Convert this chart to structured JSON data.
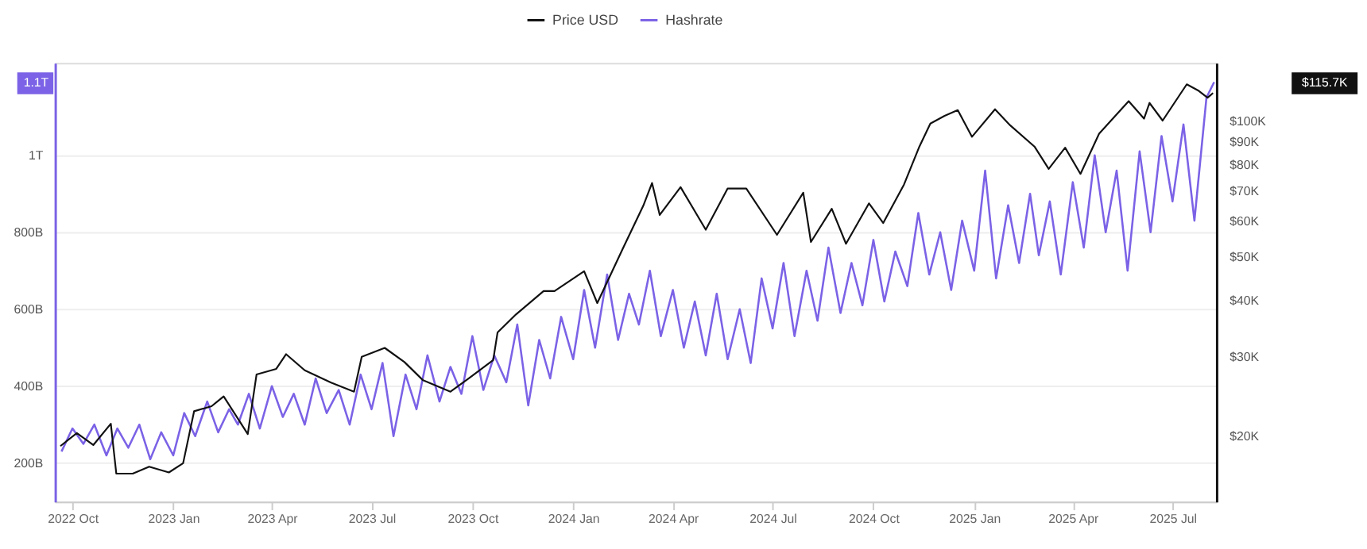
{
  "chart_data": {
    "type": "line",
    "xlim": [
      "2022-09-15",
      "2025-08-10"
    ],
    "xticks": [
      {
        "value": "2022-10-01",
        "label": "2022 Oct"
      },
      {
        "value": "2023-01-01",
        "label": "2023 Jan"
      },
      {
        "value": "2023-04-01",
        "label": "2023 Apr"
      },
      {
        "value": "2023-07-01",
        "label": "2023 Jul"
      },
      {
        "value": "2023-10-01",
        "label": "2023 Oct"
      },
      {
        "value": "2024-01-01",
        "label": "2024 Jan"
      },
      {
        "value": "2024-04-01",
        "label": "2024 Apr"
      },
      {
        "value": "2024-07-01",
        "label": "2024 Jul"
      },
      {
        "value": "2024-10-01",
        "label": "2024 Oct"
      },
      {
        "value": "2025-01-01",
        "label": "2025 Jan"
      },
      {
        "value": "2025-04-01",
        "label": "2025 Apr"
      },
      {
        "value": "2025-07-01",
        "label": "2025 Jul"
      }
    ],
    "ylim": [
      100000000000.0,
      1240000000000.0
    ],
    "yticks": [
      {
        "value": 200000000000.0,
        "label": "200B"
      },
      {
        "value": 400000000000.0,
        "label": "400B"
      },
      {
        "value": 600000000000.0,
        "label": "600B"
      },
      {
        "value": 800000000000.0,
        "label": "800B"
      },
      {
        "value": 1000000000000.0,
        "label": "1T"
      }
    ],
    "y2lim": [
      14300,
      135000
    ],
    "y2ticks": [
      {
        "value": 20000,
        "label": "$20K"
      },
      {
        "value": 30000,
        "label": "$30K"
      },
      {
        "value": 40000,
        "label": "$40K"
      },
      {
        "value": 50000,
        "label": "$50K"
      },
      {
        "value": 60000,
        "label": "$60K"
      },
      {
        "value": 70000,
        "label": "$70K"
      },
      {
        "value": 80000,
        "label": "$80K"
      },
      {
        "value": 90000,
        "label": "$90K"
      },
      {
        "value": 100000,
        "label": "$100K"
      }
    ],
    "log": "y2",
    "grid": "y",
    "legend": "top",
    "line_style": "solid",
    "marker": "none",
    "annotations": [
      "1.1T",
      "$115.7K"
    ],
    "series": [
      {
        "name": "Price USD",
        "color": "#111111",
        "axis": "y2",
        "x": [
          "2022-09-20",
          "2022-10-05",
          "2022-10-20",
          "2022-11-05",
          "2022-11-10",
          "2022-11-25",
          "2022-12-10",
          "2022-12-28",
          "2023-01-10",
          "2023-01-20",
          "2023-02-05",
          "2023-02-16",
          "2023-03-10",
          "2023-03-18",
          "2023-04-05",
          "2023-04-14",
          "2023-05-01",
          "2023-05-25",
          "2023-06-15",
          "2023-06-22",
          "2023-07-13",
          "2023-07-31",
          "2023-08-17",
          "2023-09-11",
          "2023-09-28",
          "2023-10-20",
          "2023-10-24",
          "2023-11-10",
          "2023-12-05",
          "2023-12-15",
          "2024-01-11",
          "2024-01-23",
          "2024-02-15",
          "2024-03-05",
          "2024-03-13",
          "2024-03-20",
          "2024-04-08",
          "2024-05-01",
          "2024-05-21",
          "2024-06-07",
          "2024-07-05",
          "2024-07-29",
          "2024-08-05",
          "2024-08-24",
          "2024-09-06",
          "2024-09-27",
          "2024-10-10",
          "2024-10-29",
          "2024-11-12",
          "2024-11-22",
          "2024-12-05",
          "2024-12-17",
          "2024-12-30",
          "2025-01-20",
          "2025-02-03",
          "2025-02-25",
          "2025-03-10",
          "2025-03-25",
          "2025-04-08",
          "2025-04-25",
          "2025-05-22",
          "2025-06-05",
          "2025-06-10",
          "2025-06-22",
          "2025-07-14",
          "2025-07-25",
          "2025-08-02",
          "2025-08-07"
        ],
        "values": [
          19000,
          20300,
          19100,
          21300,
          16500,
          16500,
          17100,
          16600,
          17400,
          22700,
          23300,
          24500,
          20200,
          27400,
          28200,
          30400,
          28000,
          26300,
          25100,
          30000,
          31400,
          29200,
          26600,
          25100,
          26900,
          29500,
          34000,
          37300,
          42000,
          42000,
          46500,
          39500,
          52000,
          65000,
          73000,
          62000,
          71500,
          57500,
          71000,
          71000,
          56000,
          69500,
          54000,
          64000,
          53500,
          65800,
          59500,
          72500,
          88000,
          99000,
          103000,
          106000,
          92500,
          106500,
          98000,
          88000,
          78500,
          87500,
          76500,
          94000,
          111000,
          101500,
          110000,
          100500,
          121000,
          117000,
          113000,
          115700
        ]
      },
      {
        "name": "Hashrate",
        "color": "#7b62e6",
        "axis": "y",
        "x": [
          "2022-09-21",
          "2022-10-01",
          "2022-10-11",
          "2022-10-21",
          "2022-11-01",
          "2022-11-11",
          "2022-11-21",
          "2022-12-01",
          "2022-12-11",
          "2022-12-21",
          "2023-01-01",
          "2023-01-11",
          "2023-01-21",
          "2023-02-01",
          "2023-02-11",
          "2023-02-21",
          "2023-03-01",
          "2023-03-11",
          "2023-03-21",
          "2023-04-01",
          "2023-04-11",
          "2023-04-21",
          "2023-05-01",
          "2023-05-11",
          "2023-05-21",
          "2023-06-01",
          "2023-06-11",
          "2023-06-21",
          "2023-07-01",
          "2023-07-11",
          "2023-07-21",
          "2023-08-01",
          "2023-08-11",
          "2023-08-21",
          "2023-09-01",
          "2023-09-11",
          "2023-09-21",
          "2023-10-01",
          "2023-10-11",
          "2023-10-21",
          "2023-11-01",
          "2023-11-11",
          "2023-11-21",
          "2023-12-01",
          "2023-12-11",
          "2023-12-21",
          "2024-01-01",
          "2024-01-11",
          "2024-01-21",
          "2024-02-01",
          "2024-02-11",
          "2024-02-21",
          "2024-03-01",
          "2024-03-11",
          "2024-03-21",
          "2024-04-01",
          "2024-04-11",
          "2024-04-21",
          "2024-05-01",
          "2024-05-11",
          "2024-05-21",
          "2024-06-01",
          "2024-06-11",
          "2024-06-21",
          "2024-07-01",
          "2024-07-11",
          "2024-07-21",
          "2024-08-01",
          "2024-08-11",
          "2024-08-21",
          "2024-09-01",
          "2024-09-11",
          "2024-09-21",
          "2024-10-01",
          "2024-10-11",
          "2024-10-21",
          "2024-11-01",
          "2024-11-11",
          "2024-11-21",
          "2024-12-01",
          "2024-12-11",
          "2024-12-21",
          "2025-01-01",
          "2025-01-11",
          "2025-01-21",
          "2025-02-01",
          "2025-02-11",
          "2025-02-21",
          "2025-03-01",
          "2025-03-11",
          "2025-03-21",
          "2025-04-01",
          "2025-04-11",
          "2025-04-21",
          "2025-05-01",
          "2025-05-11",
          "2025-05-21",
          "2025-06-01",
          "2025-06-11",
          "2025-06-21",
          "2025-07-01",
          "2025-07-11",
          "2025-07-21",
          "2025-08-01",
          "2025-08-08"
        ],
        "values": [
          230000000000.0,
          290000000000.0,
          250000000000.0,
          300000000000.0,
          220000000000.0,
          290000000000.0,
          240000000000.0,
          300000000000.0,
          210000000000.0,
          280000000000.0,
          220000000000.0,
          330000000000.0,
          270000000000.0,
          360000000000.0,
          280000000000.0,
          340000000000.0,
          300000000000.0,
          380000000000.0,
          290000000000.0,
          400000000000.0,
          320000000000.0,
          380000000000.0,
          300000000000.0,
          420000000000.0,
          330000000000.0,
          390000000000.0,
          300000000000.0,
          430000000000.0,
          340000000000.0,
          460000000000.0,
          270000000000.0,
          430000000000.0,
          340000000000.0,
          480000000000.0,
          360000000000.0,
          450000000000.0,
          380000000000.0,
          530000000000.0,
          390000000000.0,
          480000000000.0,
          410000000000.0,
          560000000000.0,
          350000000000.0,
          520000000000.0,
          420000000000.0,
          580000000000.0,
          470000000000.0,
          650000000000.0,
          500000000000.0,
          690000000000.0,
          520000000000.0,
          640000000000.0,
          560000000000.0,
          700000000000.0,
          530000000000.0,
          650000000000.0,
          500000000000.0,
          620000000000.0,
          480000000000.0,
          640000000000.0,
          470000000000.0,
          600000000000.0,
          460000000000.0,
          680000000000.0,
          550000000000.0,
          720000000000.0,
          530000000000.0,
          700000000000.0,
          570000000000.0,
          760000000000.0,
          590000000000.0,
          720000000000.0,
          610000000000.0,
          780000000000.0,
          620000000000.0,
          750000000000.0,
          660000000000.0,
          850000000000.0,
          690000000000.0,
          800000000000.0,
          650000000000.0,
          830000000000.0,
          700000000000.0,
          960000000000.0,
          680000000000.0,
          870000000000.0,
          720000000000.0,
          900000000000.0,
          740000000000.0,
          880000000000.0,
          690000000000.0,
          930000000000.0,
          760000000000.0,
          1000000000000.0,
          800000000000.0,
          960000000000.0,
          700000000000.0,
          1010000000000.0,
          800000000000.0,
          1050000000000.0,
          880000000000.0,
          1080000000000.0,
          830000000000.0,
          1150000000000.0,
          1190000000000.0
        ]
      }
    ]
  }
}
